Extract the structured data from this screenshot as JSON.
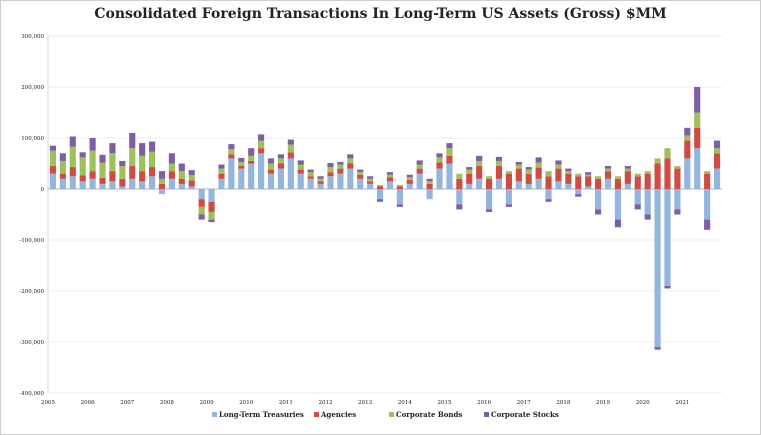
{
  "chart_data": {
    "type": "bar",
    "stacked": true,
    "title": "Consolidated Foreign Transactions In Long-Term US Assets (Gross) $MM",
    "ylim": [
      -400000,
      300000
    ],
    "yticks": [
      -400000,
      -300000,
      -200000,
      -100000,
      0,
      100000,
      200000,
      300000
    ],
    "ytick_labels": [
      "-400,000",
      "-300,000",
      "-200,000",
      "-100,000",
      "0",
      "100,000",
      "200,000",
      "300,000"
    ],
    "xtick_labels": [
      "2005",
      "2006",
      "2007",
      "2008",
      "2009",
      "2010",
      "2011",
      "2012",
      "2013",
      "2014",
      "2015",
      "2016",
      "2017",
      "2018",
      "2019",
      "2020",
      "2021"
    ],
    "grid": true,
    "legend_position": "bottom",
    "x": [
      "2005",
      "2005.25",
      "2005.5",
      "2005.75",
      "2006",
      "2006.25",
      "2006.5",
      "2006.75",
      "2007",
      "2007.25",
      "2007.5",
      "2007.75",
      "2008",
      "2008.25",
      "2008.5",
      "2008.75",
      "2009",
      "2009.25",
      "2009.5",
      "2009.75",
      "2010",
      "2010.25",
      "2010.5",
      "2010.75",
      "2011",
      "2011.25",
      "2011.5",
      "2011.75",
      "2012",
      "2012.25",
      "2012.5",
      "2012.75",
      "2013",
      "2013.25",
      "2013.5",
      "2013.75",
      "2014",
      "2014.25",
      "2014.5",
      "2014.75",
      "2015",
      "2015.25",
      "2015.5",
      "2015.75",
      "2016",
      "2016.25",
      "2016.5",
      "2016.75",
      "2017",
      "2017.25",
      "2017.5",
      "2017.75",
      "2018",
      "2018.25",
      "2018.5",
      "2018.75",
      "2019",
      "2019.25",
      "2019.5",
      "2019.75",
      "2020",
      "2020.25",
      "2020.5",
      "2020.75",
      "2021",
      "2021.25",
      "2021.5",
      "2021.75"
    ],
    "series": [
      {
        "name": "Long-Term Treasuries",
        "color": "#93b5de",
        "values": [
          30000,
          20000,
          25000,
          15000,
          20000,
          10000,
          15000,
          5000,
          20000,
          15000,
          25000,
          -10000,
          20000,
          10000,
          5000,
          -20000,
          -25000,
          20000,
          60000,
          40000,
          50000,
          70000,
          30000,
          40000,
          60000,
          30000,
          20000,
          10000,
          25000,
          30000,
          40000,
          20000,
          10000,
          -20000,
          15000,
          -30000,
          10000,
          30000,
          -20000,
          40000,
          50000,
          -30000,
          10000,
          20000,
          -40000,
          20000,
          -30000,
          15000,
          10000,
          20000,
          -20000,
          15000,
          10000,
          -10000,
          5000,
          -40000,
          20000,
          -60000,
          10000,
          -30000,
          -50000,
          -310000,
          -190000,
          -40000,
          60000,
          80000,
          -60000,
          40000
        ]
      },
      {
        "name": "Agencies",
        "color": "#cf4b43",
        "values": [
          15000,
          10000,
          18000,
          12000,
          15000,
          12000,
          20000,
          15000,
          25000,
          20000,
          18000,
          10000,
          15000,
          10000,
          12000,
          -15000,
          -20000,
          10000,
          8000,
          5000,
          5000,
          10000,
          8000,
          10000,
          12000,
          8000,
          5000,
          5000,
          8000,
          10000,
          10000,
          8000,
          5000,
          5000,
          8000,
          5000,
          8000,
          10000,
          10000,
          12000,
          15000,
          20000,
          20000,
          25000,
          20000,
          25000,
          30000,
          25000,
          20000,
          22000,
          25000,
          25000,
          20000,
          25000,
          20000,
          20000,
          15000,
          20000,
          25000,
          25000,
          30000,
          50000,
          60000,
          40000,
          35000,
          40000,
          30000,
          30000
        ]
      },
      {
        "name": "Corporate Bonds",
        "color": "#9fc15c",
        "values": [
          30000,
          25000,
          40000,
          35000,
          40000,
          30000,
          35000,
          25000,
          35000,
          30000,
          30000,
          10000,
          15000,
          15000,
          10000,
          -15000,
          -15000,
          10000,
          10000,
          8000,
          10000,
          15000,
          12000,
          10000,
          15000,
          10000,
          8000,
          5000,
          10000,
          8000,
          10000,
          5000,
          5000,
          3000,
          5000,
          3000,
          5000,
          8000,
          5000,
          10000,
          15000,
          10000,
          8000,
          10000,
          5000,
          10000,
          5000,
          8000,
          8000,
          10000,
          10000,
          8000,
          5000,
          5000,
          3000,
          5000,
          5000,
          5000,
          5000,
          5000,
          5000,
          10000,
          20000,
          5000,
          10000,
          30000,
          5000,
          10000
        ]
      },
      {
        "name": "Corporate Stocks",
        "color": "#7d5fa3",
        "values": [
          10000,
          15000,
          20000,
          10000,
          25000,
          15000,
          20000,
          10000,
          30000,
          25000,
          20000,
          15000,
          20000,
          15000,
          10000,
          -10000,
          -5000,
          8000,
          10000,
          8000,
          15000,
          12000,
          10000,
          8000,
          10000,
          8000,
          5000,
          5000,
          8000,
          5000,
          8000,
          5000,
          5000,
          -5000,
          5000,
          -5000,
          5000,
          8000,
          5000,
          8000,
          10000,
          -10000,
          5000,
          10000,
          -5000,
          8000,
          -5000,
          5000,
          5000,
          10000,
          -5000,
          8000,
          5000,
          -5000,
          5000,
          -10000,
          5000,
          -15000,
          5000,
          -10000,
          -10000,
          -5000,
          -5000,
          -10000,
          15000,
          50000,
          -20000,
          15000
        ]
      }
    ]
  }
}
